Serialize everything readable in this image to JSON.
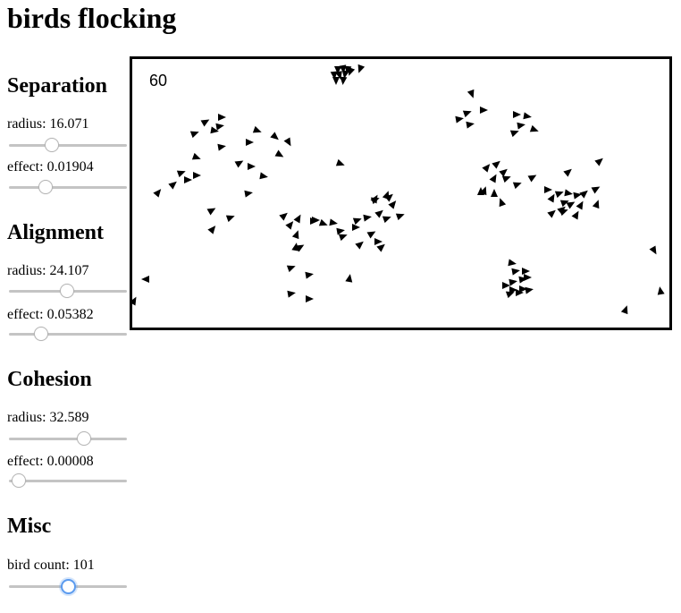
{
  "title": "birds flocking",
  "fps": "60",
  "sections": {
    "separation": {
      "heading": "Separation",
      "radius_label": "radius: 16.071",
      "radius_value": 0.36,
      "effect_label": "effect: 0.01904",
      "effect_value": 0.31
    },
    "alignment": {
      "heading": "Alignment",
      "radius_label": "radius: 24.107",
      "radius_value": 0.49,
      "effect_label": "effect: 0.05382",
      "effect_value": 0.27
    },
    "cohesion": {
      "heading": "Cohesion",
      "radius_label": "radius: 32.589",
      "radius_value": 0.64,
      "effect_label": "effect: 0.00008",
      "effect_value": 0.08
    },
    "misc": {
      "heading": "Misc",
      "count_label": "bird count: 101",
      "count_value": 0.5
    }
  },
  "colors": {
    "bird": "#000000",
    "track": "#c4c4c4",
    "focus_ring": "#5b9bef"
  }
}
